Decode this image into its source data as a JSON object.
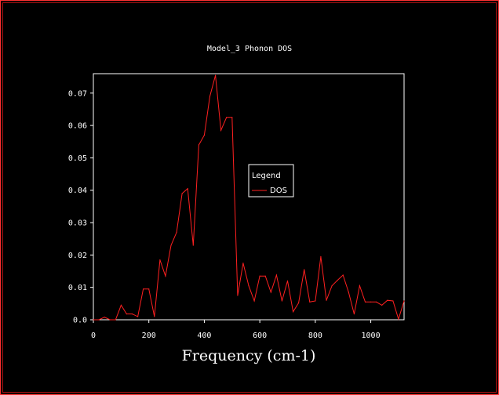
{
  "chart_data": {
    "type": "line",
    "title": "Model_3 Phonon DOS",
    "xlabel": "Frequency (cm-1)",
    "ylabel": "",
    "xlim": [
      0,
      1120
    ],
    "ylim": [
      0,
      0.076
    ],
    "x_ticks": [
      {
        "value": 0,
        "label": "0"
      },
      {
        "value": 200,
        "label": "200"
      },
      {
        "value": 400,
        "label": "400"
      },
      {
        "value": 600,
        "label": "600"
      },
      {
        "value": 800,
        "label": "800"
      },
      {
        "value": 1000,
        "label": "1000"
      }
    ],
    "y_ticks": [
      {
        "value": 0,
        "label": "0.0"
      },
      {
        "value": 0.01,
        "label": "0.01"
      },
      {
        "value": 0.02,
        "label": "0.02"
      },
      {
        "value": 0.03,
        "label": "0.03"
      },
      {
        "value": 0.04,
        "label": "0.04"
      },
      {
        "value": 0.05,
        "label": "0.05"
      },
      {
        "value": 0.06,
        "label": "0.06"
      },
      {
        "value": 0.07,
        "label": "0.07"
      }
    ],
    "legend": {
      "title": "Legend",
      "placement": "center-right"
    },
    "grid": false,
    "series": [
      {
        "name": "DOS",
        "color": "#ff2020",
        "points": [
          [
            0,
            0.0
          ],
          [
            20,
            0.0
          ],
          [
            40,
            0.0008
          ],
          [
            60,
            0.0
          ],
          [
            80,
            0.0
          ],
          [
            100,
            0.0045
          ],
          [
            120,
            0.0018
          ],
          [
            140,
            0.0018
          ],
          [
            160,
            0.001
          ],
          [
            180,
            0.0095
          ],
          [
            200,
            0.0095
          ],
          [
            220,
            0.001
          ],
          [
            240,
            0.0185
          ],
          [
            260,
            0.0135
          ],
          [
            280,
            0.023
          ],
          [
            300,
            0.027
          ],
          [
            320,
            0.039
          ],
          [
            340,
            0.0405
          ],
          [
            360,
            0.023
          ],
          [
            380,
            0.054
          ],
          [
            400,
            0.057
          ],
          [
            420,
            0.069
          ],
          [
            440,
            0.0755
          ],
          [
            460,
            0.0585
          ],
          [
            480,
            0.0625
          ],
          [
            500,
            0.0625
          ],
          [
            520,
            0.0075
          ],
          [
            540,
            0.0175
          ],
          [
            560,
            0.0105
          ],
          [
            580,
            0.0058
          ],
          [
            600,
            0.0135
          ],
          [
            620,
            0.0135
          ],
          [
            640,
            0.0085
          ],
          [
            660,
            0.0138
          ],
          [
            680,
            0.0058
          ],
          [
            700,
            0.012
          ],
          [
            720,
            0.0025
          ],
          [
            740,
            0.0052
          ],
          [
            760,
            0.0155
          ],
          [
            780,
            0.0055
          ],
          [
            800,
            0.0058
          ],
          [
            820,
            0.0195
          ],
          [
            840,
            0.006
          ],
          [
            860,
            0.0105
          ],
          [
            880,
            0.0122
          ],
          [
            900,
            0.0138
          ],
          [
            920,
            0.0085
          ],
          [
            940,
            0.0018
          ],
          [
            960,
            0.0105
          ],
          [
            980,
            0.0055
          ],
          [
            1000,
            0.0055
          ],
          [
            1020,
            0.0055
          ],
          [
            1040,
            0.0045
          ],
          [
            1060,
            0.006
          ],
          [
            1080,
            0.0058
          ],
          [
            1100,
            0.0002
          ],
          [
            1120,
            0.0058
          ]
        ]
      }
    ]
  }
}
